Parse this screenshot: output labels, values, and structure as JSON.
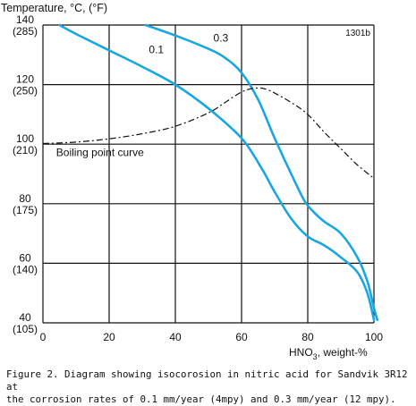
{
  "chart_data": {
    "type": "line",
    "ylabel": "Temperature, °C, (°F)",
    "xlabel_main": "HNO",
    "xlabel_sub": "3",
    "xlabel_rest": ", weight-%",
    "figure_code": "1301b",
    "xlim": [
      0,
      100
    ],
    "ylim": [
      40,
      140
    ],
    "x_ticks": [
      {
        "value": 0,
        "label": "0"
      },
      {
        "value": 20,
        "label": "20"
      },
      {
        "value": 40,
        "label": "40"
      },
      {
        "value": 60,
        "label": "60"
      },
      {
        "value": 80,
        "label": "80"
      },
      {
        "value": 100,
        "label": "100"
      }
    ],
    "y_ticks": [
      {
        "value": 140,
        "c": "140",
        "f": "(285)"
      },
      {
        "value": 120,
        "c": "120",
        "f": "(250)"
      },
      {
        "value": 100,
        "c": "100",
        "f": "(210)"
      },
      {
        "value": 80,
        "c": "80",
        "f": "(175)"
      },
      {
        "value": 60,
        "c": "60",
        "f": "(140)"
      },
      {
        "value": 40,
        "c": "40",
        "f": "(105)"
      }
    ],
    "grid": true,
    "series": [
      {
        "name": "0.1",
        "style": "iso",
        "color": "#1aa6e0",
        "points": [
          [
            5,
            140
          ],
          [
            10,
            137
          ],
          [
            20,
            131.5
          ],
          [
            30,
            126
          ],
          [
            40,
            120
          ],
          [
            50,
            112
          ],
          [
            60,
            102
          ],
          [
            66,
            92
          ],
          [
            70,
            84
          ],
          [
            75,
            75
          ],
          [
            80,
            69
          ],
          [
            85,
            66
          ],
          [
            90,
            62
          ],
          [
            95,
            57
          ],
          [
            98,
            50
          ],
          [
            100,
            41
          ]
        ]
      },
      {
        "name": "0.3",
        "style": "iso",
        "color": "#1aa6e0",
        "points": [
          [
            31,
            140
          ],
          [
            40,
            136.5
          ],
          [
            50,
            132
          ],
          [
            55,
            129
          ],
          [
            60,
            124
          ],
          [
            65,
            115
          ],
          [
            70,
            102
          ],
          [
            75,
            90
          ],
          [
            79,
            81
          ],
          [
            82,
            77
          ],
          [
            85,
            74
          ],
          [
            90,
            70
          ],
          [
            95,
            62
          ],
          [
            98,
            54
          ],
          [
            100,
            45
          ],
          [
            101,
            41
          ]
        ]
      },
      {
        "name": "Boiling point curve",
        "style": "boiling",
        "color": "#111111",
        "points": [
          [
            0,
            100.2
          ],
          [
            10,
            100.7
          ],
          [
            20,
            101.8
          ],
          [
            30,
            103.5
          ],
          [
            40,
            106
          ],
          [
            50,
            110.5
          ],
          [
            55,
            114
          ],
          [
            60,
            117.5
          ],
          [
            64,
            118.8
          ],
          [
            68,
            118.2
          ],
          [
            75,
            114
          ],
          [
            80,
            110
          ],
          [
            85,
            104
          ],
          [
            90,
            98.5
          ],
          [
            95,
            93
          ],
          [
            100,
            88.5
          ]
        ]
      }
    ],
    "annotations": [
      {
        "text": "0.1",
        "x": 32,
        "y": 130.5
      },
      {
        "text": "0.3",
        "x": 51.5,
        "y": 134.5
      },
      {
        "text": "Boiling point curve",
        "x": 4,
        "y": 96
      }
    ]
  },
  "caption": {
    "line1": "Figure 2. Diagram showing isocorosion in nitric acid for Sandvik 3R12 at",
    "line2": "the corrosion rates of 0.1 mm/year (4mpy) and 0.3 mm/year (12 mpy)."
  }
}
